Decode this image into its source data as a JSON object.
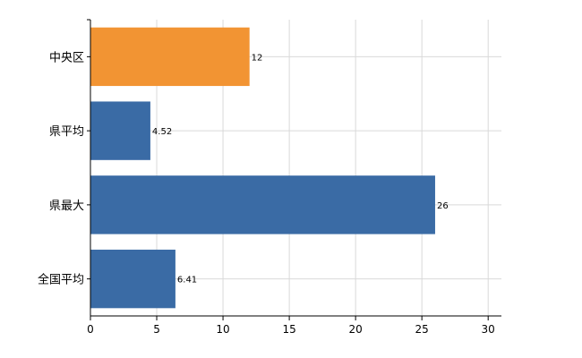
{
  "chart_data": {
    "type": "bar",
    "orientation": "horizontal",
    "categories": [
      "中央区",
      "県平均",
      "県最大",
      "全国平均"
    ],
    "values": [
      12,
      4.52,
      26,
      6.41
    ],
    "data_labels": [
      "12",
      "4.52",
      "26",
      "6.41"
    ],
    "highlight_index": 0,
    "xlim": [
      0,
      31
    ],
    "x_ticks": [
      0,
      5,
      10,
      15,
      20,
      25,
      30
    ],
    "tick_labels": [
      "0",
      "5",
      "10",
      "15",
      "20",
      "25",
      "30"
    ],
    "grid": true,
    "legend": "none",
    "title": "",
    "xlabel": "",
    "ylabel": "",
    "colors": {
      "bar": "#3a6ba5",
      "highlight": "#f29433",
      "grid": "#d9d9d9",
      "axis": "#000000"
    }
  }
}
